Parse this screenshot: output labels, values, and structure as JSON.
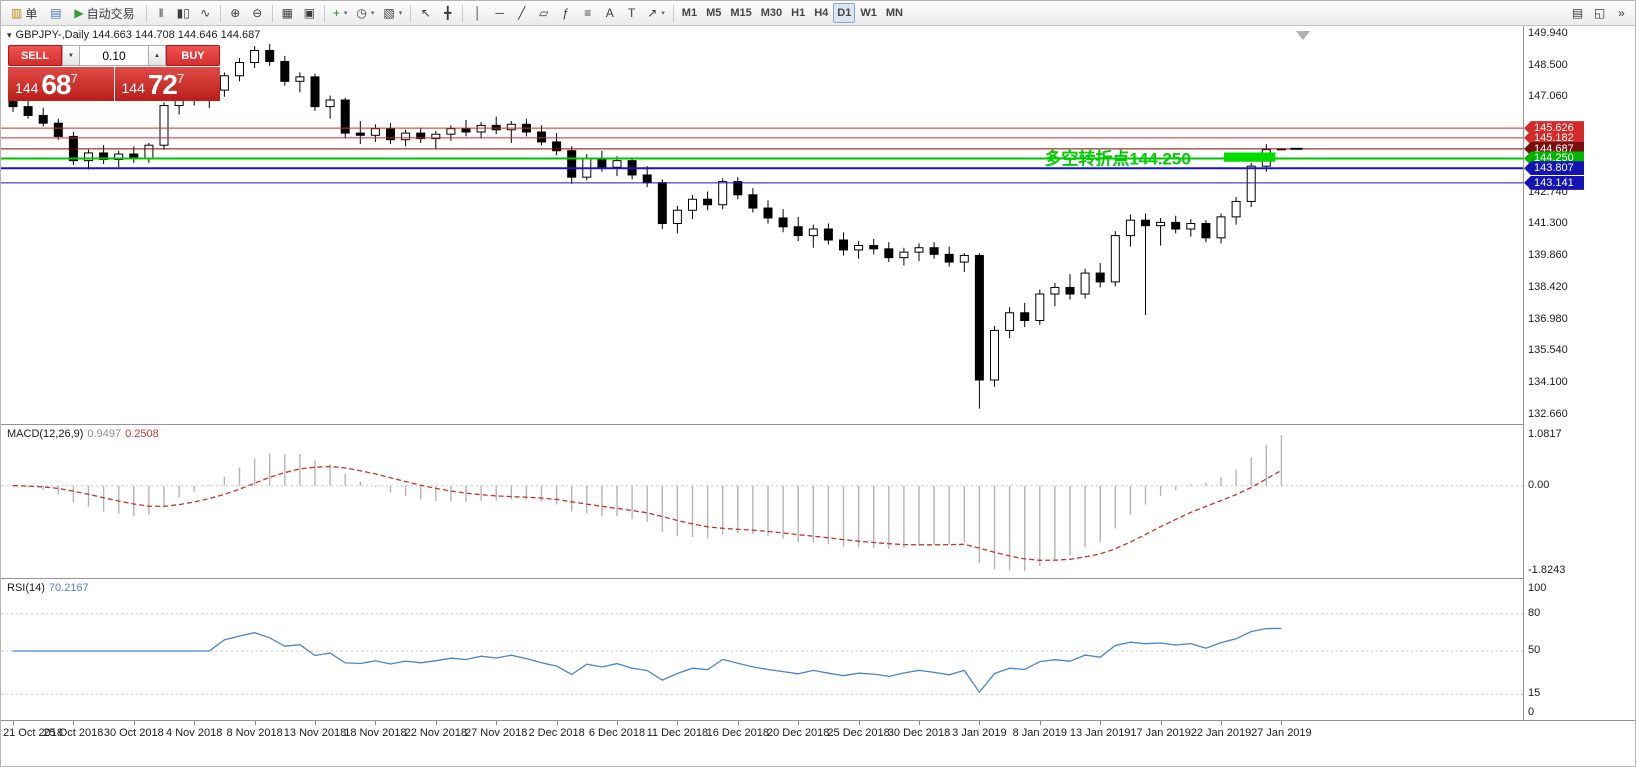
{
  "symbol_header": "GBPJPY-,Daily 144.663 144.708 144.646 144.687",
  "icons": {
    "oneclick_toggle": "▾"
  },
  "toolbar": {
    "items": [
      {
        "name": "new-order",
        "icon": "▥",
        "icon_color": "#b8860b",
        "label": "单"
      },
      {
        "name": "chart-window",
        "icon": "▤",
        "icon_color": "#4477bb"
      },
      {
        "name": "autotrading",
        "icon": "▶",
        "icon_color": "#2f9e2f",
        "label": "自动交易"
      },
      {
        "sep": true
      },
      {
        "name": "bar-chart-mode",
        "icon": "‖"
      },
      {
        "name": "candlestick-mode",
        "icon": "▮▯"
      },
      {
        "name": "line-chart-mode",
        "icon": "∿"
      },
      {
        "sep": true
      },
      {
        "name": "zoom-in",
        "icon": "⊕"
      },
      {
        "name": "zoom-out",
        "icon": "⊖"
      },
      {
        "sep": true
      },
      {
        "name": "tile-windows",
        "icon": "▦"
      },
      {
        "name": "arrange-windows",
        "icon": "▣"
      },
      {
        "sep": true
      },
      {
        "name": "indicators",
        "icon": "+",
        "icon_color": "#1d8a1d",
        "caret": true
      },
      {
        "name": "periods",
        "icon": "◷",
        "caret": true
      },
      {
        "name": "templates",
        "icon": "▧",
        "caret": true
      },
      {
        "sep": true
      },
      {
        "name": "cursor",
        "icon": "↖"
      },
      {
        "name": "crosshair",
        "icon": "╋"
      },
      {
        "sep": true
      },
      {
        "name": "vertical-line",
        "icon": "│"
      },
      {
        "name": "horizontal-line",
        "icon": "─"
      },
      {
        "name": "trendline",
        "icon": "╱"
      },
      {
        "name": "equidistant-channel",
        "icon": "▱"
      },
      {
        "name": "fibonacci-retracement",
        "icon": "ƒ"
      },
      {
        "name": "andrews-pitchfork",
        "icon": "≡"
      },
      {
        "name": "text",
        "icon": "A"
      },
      {
        "name": "text-label",
        "icon": "T"
      },
      {
        "name": "arrow-objects",
        "icon": "↗",
        "caret": true
      },
      {
        "sep": true
      },
      {
        "tf": true,
        "label": "M1"
      },
      {
        "tf": true,
        "label": "M5"
      },
      {
        "tf": true,
        "label": "M15"
      },
      {
        "tf": true,
        "label": "M30"
      },
      {
        "tf": true,
        "label": "H1"
      },
      {
        "tf": true,
        "label": "H4"
      },
      {
        "tf": true,
        "label": "D1",
        "active": true
      },
      {
        "tf": true,
        "label": "W1"
      },
      {
        "tf": true,
        "label": "MN"
      },
      {
        "spacer": true
      },
      {
        "name": "print",
        "icon": "▤"
      },
      {
        "name": "print-preview",
        "icon": "◱"
      },
      {
        "name": "toolbar-options",
        "icon": "»"
      }
    ],
    "active_timeframe": "D1"
  },
  "one_click": {
    "sell_label": "SELL",
    "buy_label": "BUY",
    "volume": "0.10",
    "spin_down": "▼",
    "spin_up": "▲",
    "sell_small": "144",
    "sell_big": "68",
    "sell_sup": "7",
    "buy_small": "144",
    "buy_big": "72",
    "buy_sup": "7"
  },
  "chart_data": [
    {
      "type": "candlestick",
      "title": "GBPJPY-,Daily",
      "timeframe": "D1",
      "last_price": 144.687,
      "ylim": [
        132.204,
        150.258
      ],
      "y_ticks": [
        149.94,
        148.5,
        147.06,
        145.62,
        144.18,
        142.74,
        141.3,
        139.86,
        138.42,
        136.98,
        135.54,
        134.1,
        132.66
      ],
      "x_labels": [
        "21 Oct 2018",
        "25 Oct 2018",
        "30 Oct 2018",
        "4 Nov 2018",
        "8 Nov 2018",
        "13 Nov 2018",
        "18 Nov 2018",
        "22 Nov 2018",
        "27 Nov 2018",
        "2 Dec 2018",
        "6 Dec 2018",
        "11 Dec 2018",
        "16 Dec 2018",
        "20 Dec 2018",
        "25 Dec 2018",
        "30 Dec 2018",
        "3 Jan 2019",
        "8 Jan 2019",
        "13 Jan 2019",
        "17 Jan 2019",
        "22 Jan 2019",
        "27 Jan 2019"
      ],
      "candles_per_label": 4,
      "ohlc": [
        [
          146.9,
          147.15,
          146.35,
          146.6
        ],
        [
          146.6,
          146.85,
          146.05,
          146.2
        ],
        [
          146.2,
          146.55,
          145.7,
          145.85
        ],
        [
          145.85,
          146.05,
          145.1,
          145.25
        ],
        [
          145.25,
          145.45,
          143.95,
          144.15
        ],
        [
          144.15,
          144.65,
          143.75,
          144.5
        ],
        [
          144.5,
          144.85,
          144.0,
          144.2
        ],
        [
          144.2,
          144.6,
          143.85,
          144.45
        ],
        [
          144.45,
          144.8,
          144.05,
          144.25
        ],
        [
          144.25,
          144.95,
          144.05,
          144.85
        ],
        [
          144.85,
          146.8,
          144.65,
          146.65
        ],
        [
          146.65,
          147.35,
          146.25,
          147.15
        ],
        [
          147.15,
          147.55,
          146.65,
          146.9
        ],
        [
          146.9,
          147.5,
          146.55,
          147.35
        ],
        [
          147.35,
          148.15,
          147.05,
          148.0
        ],
        [
          148.0,
          148.8,
          147.75,
          148.6
        ],
        [
          148.6,
          149.35,
          148.35,
          149.15
        ],
        [
          149.15,
          149.45,
          148.45,
          148.65
        ],
        [
          148.65,
          148.9,
          147.55,
          147.75
        ],
        [
          147.75,
          148.15,
          147.25,
          147.95
        ],
        [
          147.95,
          148.1,
          146.4,
          146.6
        ],
        [
          146.6,
          147.1,
          146.05,
          146.9
        ],
        [
          146.9,
          147.0,
          145.15,
          145.4
        ],
        [
          145.4,
          145.95,
          144.9,
          145.3
        ],
        [
          145.3,
          145.8,
          145.0,
          145.6
        ],
        [
          145.6,
          145.85,
          144.9,
          145.1
        ],
        [
          145.1,
          145.55,
          144.8,
          145.4
        ],
        [
          145.4,
          145.65,
          144.95,
          145.15
        ],
        [
          145.15,
          145.5,
          144.7,
          145.35
        ],
        [
          145.35,
          145.75,
          145.05,
          145.6
        ],
        [
          145.6,
          146.0,
          145.25,
          145.45
        ],
        [
          145.45,
          145.9,
          145.15,
          145.75
        ],
        [
          145.75,
          146.15,
          145.35,
          145.55
        ],
        [
          145.55,
          145.95,
          144.95,
          145.8
        ],
        [
          145.8,
          146.05,
          145.25,
          145.45
        ],
        [
          145.45,
          145.75,
          144.85,
          145.0
        ],
        [
          145.0,
          145.4,
          144.4,
          144.6
        ],
        [
          144.6,
          144.8,
          143.1,
          143.4
        ],
        [
          143.4,
          144.45,
          143.25,
          144.25
        ],
        [
          144.25,
          144.6,
          143.65,
          143.85
        ],
        [
          143.85,
          144.35,
          143.45,
          144.15
        ],
        [
          144.15,
          144.3,
          143.3,
          143.5
        ],
        [
          143.5,
          143.9,
          142.95,
          143.15
        ],
        [
          143.15,
          143.3,
          141.05,
          141.3
        ],
        [
          141.3,
          142.1,
          140.85,
          141.9
        ],
        [
          141.9,
          142.6,
          141.5,
          142.4
        ],
        [
          142.4,
          142.75,
          141.9,
          142.15
        ],
        [
          142.15,
          143.35,
          141.95,
          143.2
        ],
        [
          143.2,
          143.4,
          142.4,
          142.6
        ],
        [
          142.6,
          142.9,
          141.8,
          142.0
        ],
        [
          142.0,
          142.35,
          141.3,
          141.55
        ],
        [
          141.55,
          141.95,
          140.9,
          141.15
        ],
        [
          141.15,
          141.6,
          140.5,
          140.75
        ],
        [
          140.75,
          141.25,
          140.2,
          141.05
        ],
        [
          141.05,
          141.3,
          140.35,
          140.55
        ],
        [
          140.55,
          140.9,
          139.85,
          140.1
        ],
        [
          140.1,
          140.5,
          139.7,
          140.3
        ],
        [
          140.3,
          140.6,
          139.9,
          140.15
        ],
        [
          140.15,
          140.45,
          139.55,
          139.75
        ],
        [
          139.75,
          140.2,
          139.4,
          140.0
        ],
        [
          140.0,
          140.4,
          139.6,
          140.2
        ],
        [
          140.2,
          140.45,
          139.7,
          139.9
        ],
        [
          139.9,
          140.25,
          139.35,
          139.55
        ],
        [
          139.55,
          139.95,
          139.1,
          139.85
        ],
        [
          139.85,
          139.95,
          132.9,
          134.2
        ],
        [
          134.2,
          136.65,
          133.9,
          136.45
        ],
        [
          136.45,
          137.5,
          136.1,
          137.25
        ],
        [
          137.25,
          137.7,
          136.6,
          136.9
        ],
        [
          136.9,
          138.3,
          136.7,
          138.1
        ],
        [
          138.1,
          138.6,
          137.55,
          138.4
        ],
        [
          138.4,
          139.0,
          137.85,
          138.1
        ],
        [
          138.1,
          139.25,
          137.9,
          139.05
        ],
        [
          139.05,
          139.5,
          138.4,
          138.65
        ],
        [
          138.65,
          140.95,
          138.45,
          140.75
        ],
        [
          140.75,
          141.7,
          140.25,
          141.45
        ],
        [
          141.45,
          141.75,
          137.15,
          141.2
        ],
        [
          141.2,
          141.55,
          140.3,
          141.35
        ],
        [
          141.35,
          141.65,
          140.85,
          141.05
        ],
        [
          141.05,
          141.5,
          140.7,
          141.3
        ],
        [
          141.3,
          141.45,
          140.45,
          140.65
        ],
        [
          140.65,
          141.75,
          140.4,
          141.6
        ],
        [
          141.6,
          142.5,
          141.25,
          142.3
        ],
        [
          142.3,
          144.05,
          142.05,
          143.9
        ],
        [
          143.9,
          144.9,
          143.65,
          144.65
        ],
        [
          144.663,
          144.708,
          144.646,
          144.687
        ]
      ],
      "horizontal_lines": [
        {
          "price": 145.626,
          "color": "#d42a2a",
          "width": 1,
          "tag_bg": "#d42a2a"
        },
        {
          "price": 145.182,
          "color": "#d42a2a",
          "width": 1,
          "tag_bg": "#d42a2a"
        },
        {
          "price": 144.687,
          "color": "#8b0000",
          "width": 1,
          "tag_bg": "#7c0d0d"
        },
        {
          "price": 144.25,
          "color": "#00c400",
          "width": 2,
          "tag_bg": "#00b400"
        },
        {
          "price": 143.807,
          "color": "#1616c8",
          "width": 2,
          "tag_bg": "#1414b4"
        },
        {
          "price": 143.141,
          "color": "#1616c8",
          "width": 1,
          "tag_bg": "#1414b4"
        }
      ],
      "rectangle": {
        "i0": 80.2,
        "i1": 83.6,
        "p0": 144.1,
        "p1": 144.52,
        "color": "#00dc00"
      },
      "annotation": {
        "text": "多空转折点144.250",
        "color": "#00cc00",
        "anchor_index": 78,
        "price": 143.98,
        "font_size": 17,
        "bold": true
      },
      "bull_color": "#ffffff",
      "bear_color": "#000000",
      "wick_color": "#000000"
    },
    {
      "type": "bar",
      "name": "MACD(12,26,9)",
      "current_main": "0.9497",
      "current_signal": "0.2508",
      "derived": "histogram = EMA12-EMA26 of closes, signal = EMA9 of histogram",
      "scale_max": 1.0817,
      "scale_min": -1.8243,
      "y_ticks": [
        {
          "v": 1.0817,
          "t": "1.0817"
        },
        {
          "v": 0,
          "t": "0.00"
        },
        {
          "v": -1.8243,
          "t": "-1.8243"
        }
      ],
      "histogram_color": "#b4b4b4",
      "signal_color": "#c83232"
    },
    {
      "type": "line",
      "name": "RSI(14)",
      "period": 14,
      "current": "70.2167",
      "range": [
        0,
        100
      ],
      "levels": [
        80,
        50,
        15
      ],
      "y_ticks": [
        {
          "v": 100,
          "t": "100"
        },
        {
          "v": 80,
          "t": "80"
        },
        {
          "v": 50,
          "t": "50"
        },
        {
          "v": 15,
          "t": "15"
        },
        {
          "v": 0,
          "t": "0"
        }
      ],
      "line_color": "#4a86c8",
      "level_color": "#c8c8c8"
    }
  ]
}
